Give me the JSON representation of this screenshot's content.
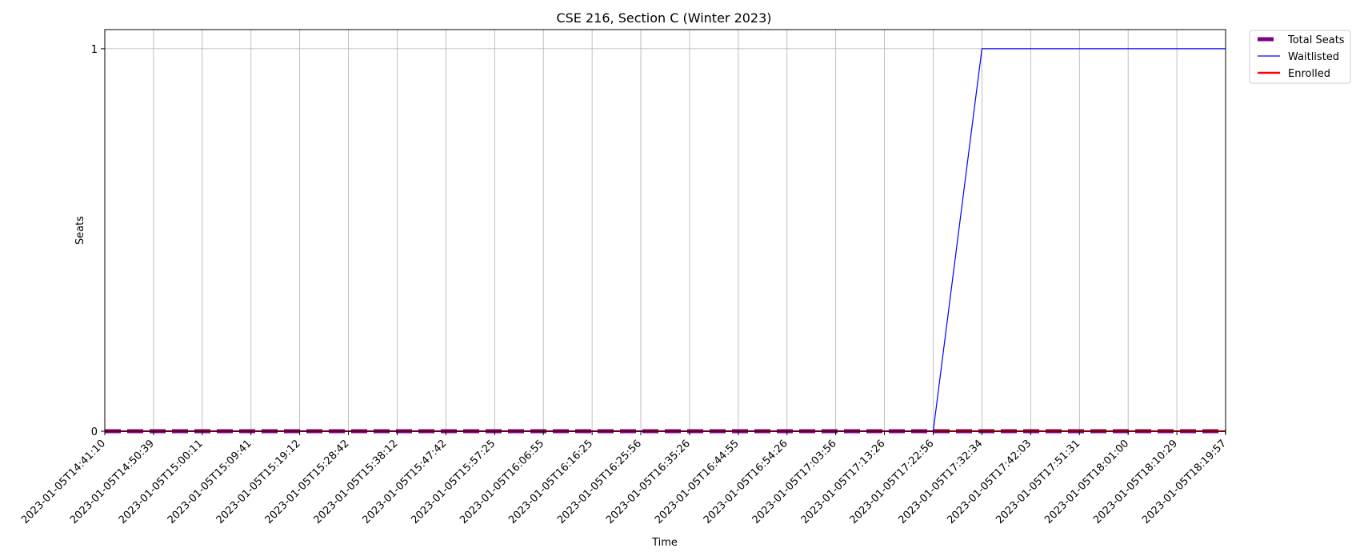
{
  "chart_data": {
    "type": "line",
    "title": "CSE 216, Section C (Winter 2023)",
    "xlabel": "Time",
    "ylabel": "Seats",
    "x": [
      "2023-01-05T14:41:10",
      "2023-01-05T14:50:39",
      "2023-01-05T15:00:11",
      "2023-01-05T15:09:41",
      "2023-01-05T15:19:12",
      "2023-01-05T15:28:42",
      "2023-01-05T15:38:12",
      "2023-01-05T15:47:42",
      "2023-01-05T15:57:25",
      "2023-01-05T16:06:55",
      "2023-01-05T16:16:25",
      "2023-01-05T16:25:56",
      "2023-01-05T16:35:26",
      "2023-01-05T16:44:55",
      "2023-01-05T16:54:26",
      "2023-01-05T17:03:56",
      "2023-01-05T17:13:26",
      "2023-01-05T17:22:56",
      "2023-01-05T17:32:34",
      "2023-01-05T17:42:03",
      "2023-01-05T17:51:31",
      "2023-01-05T18:01:00",
      "2023-01-05T18:10:29",
      "2023-01-05T18:19:57"
    ],
    "yticks": [
      0,
      1
    ],
    "ylim": [
      0,
      1.05
    ],
    "grid": true,
    "legend_position": "outside-top-right",
    "series": [
      {
        "name": "Total Seats",
        "color": "#800080",
        "style": "dashed",
        "values": [
          0,
          0,
          0,
          0,
          0,
          0,
          0,
          0,
          0,
          0,
          0,
          0,
          0,
          0,
          0,
          0,
          0,
          0,
          0,
          0,
          0,
          0,
          0,
          0
        ]
      },
      {
        "name": "Waitlisted",
        "color": "#0000ff",
        "style": "solid",
        "values": [
          0,
          0,
          0,
          0,
          0,
          0,
          0,
          0,
          0,
          0,
          0,
          0,
          0,
          0,
          0,
          0,
          0,
          0,
          1,
          1,
          1,
          1,
          1,
          1
        ]
      },
      {
        "name": "Enrolled",
        "color": "#ff0000",
        "style": "solid",
        "values": [
          0,
          0,
          0,
          0,
          0,
          0,
          0,
          0,
          0,
          0,
          0,
          0,
          0,
          0,
          0,
          0,
          0,
          0,
          0,
          0,
          0,
          0,
          0,
          0
        ]
      }
    ]
  }
}
